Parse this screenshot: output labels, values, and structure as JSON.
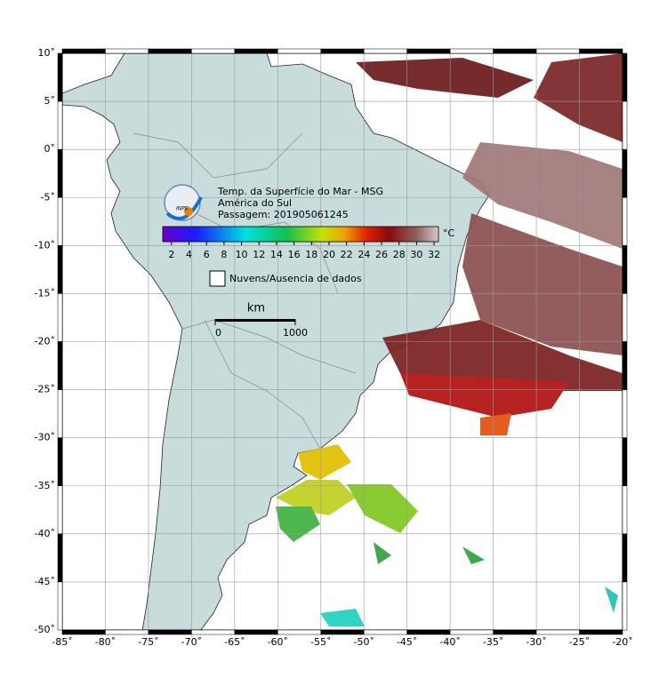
{
  "map": {
    "xlim": [
      -85,
      -20
    ],
    "ylim": [
      -50,
      10
    ],
    "lon_ticks": [
      {
        "value": -85,
        "label": "-85˚"
      },
      {
        "value": -80,
        "label": "-80˚"
      },
      {
        "value": -75,
        "label": "-75˚"
      },
      {
        "value": -70,
        "label": "-70˚"
      },
      {
        "value": -65,
        "label": "-65˚"
      },
      {
        "value": -60,
        "label": "-60˚"
      },
      {
        "value": -55,
        "label": "-55˚"
      },
      {
        "value": -50,
        "label": "-50˚"
      },
      {
        "value": -45,
        "label": "-45˚"
      },
      {
        "value": -40,
        "label": "-40˚"
      },
      {
        "value": -35,
        "label": "-35˚"
      },
      {
        "value": -30,
        "label": "-30˚"
      },
      {
        "value": -25,
        "label": "-25˚"
      },
      {
        "value": -20,
        "label": "-20˚"
      }
    ],
    "lat_ticks": [
      {
        "value": 10,
        "label": "10˚"
      },
      {
        "value": 5,
        "label": "5˚"
      },
      {
        "value": 0,
        "label": "0˚"
      },
      {
        "value": -5,
        "label": "-5˚"
      },
      {
        "value": -10,
        "label": "-10˚"
      },
      {
        "value": -15,
        "label": "-15˚"
      },
      {
        "value": -20,
        "label": "-20˚"
      },
      {
        "value": -25,
        "label": "-25˚"
      },
      {
        "value": -30,
        "label": "-30˚"
      },
      {
        "value": -35,
        "label": "-35˚"
      },
      {
        "value": -40,
        "label": "-40˚"
      },
      {
        "value": -45,
        "label": "-45˚"
      },
      {
        "value": -50,
        "label": "-50˚"
      }
    ]
  },
  "logo": "INPE",
  "title": {
    "lines": [
      "Temp. da Superfície do Mar - MSG",
      "América do Sul",
      "Passagem: 201905061245"
    ]
  },
  "colorbar": {
    "unit": "°C",
    "lim": [
      1,
      32.5
    ],
    "ticks": [
      2,
      4,
      6,
      8,
      10,
      12,
      14,
      16,
      18,
      20,
      22,
      24,
      26,
      28,
      30,
      32
    ]
  },
  "legend": {
    "label": "Nuvens/Ausencia de dados"
  },
  "scale_bar": {
    "unit": "km",
    "ticks": [
      0,
      1000
    ]
  }
}
